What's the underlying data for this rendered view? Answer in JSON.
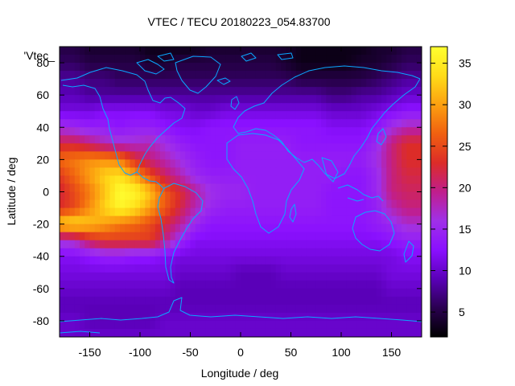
{
  "chart_data": {
    "type": "heatmap",
    "title": "VTEC / TECU 20180223_054.83700",
    "xlabel": "Longitude / deg",
    "ylabel": "Latitude / deg",
    "legend_entry": "'Vtec_",
    "xlim": [
      -180,
      180
    ],
    "ylim": [
      -90,
      90
    ],
    "x_ticks": [
      -150,
      -100,
      -50,
      0,
      50,
      100,
      150
    ],
    "y_ticks": [
      -80,
      -60,
      -40,
      -20,
      0,
      20,
      40,
      60,
      80
    ],
    "colorbar": {
      "range": [
        2,
        37
      ],
      "ticks": [
        5,
        10,
        15,
        20,
        25,
        30,
        35
      ],
      "palette": [
        "#000000",
        "#2a0050",
        "#5a00b8",
        "#8a10ff",
        "#a030e8",
        "#c01e8c",
        "#dc2c28",
        "#f06010",
        "#fca010",
        "#ffdc18",
        "#ffff30"
      ]
    },
    "grid_columns_lon": [
      -180,
      -165,
      -150,
      -135,
      -120,
      -105,
      -90,
      -75,
      -60,
      -45,
      -30,
      -15,
      0,
      15,
      30,
      45,
      60,
      75,
      90,
      105,
      120,
      135,
      150,
      165,
      180
    ],
    "grid_rows_lat": [
      90,
      80,
      70,
      60,
      50,
      40,
      30,
      20,
      10,
      0,
      -10,
      -20,
      -30,
      -40,
      -50,
      -60,
      -70,
      -80,
      -90
    ],
    "values": [
      [
        5,
        5,
        4,
        4,
        4,
        4,
        3,
        3,
        3,
        3,
        4,
        4,
        4,
        4,
        4,
        4,
        3,
        3,
        3,
        3,
        3,
        4,
        4,
        5,
        5
      ],
      [
        6,
        6,
        5,
        5,
        5,
        5,
        4,
        4,
        5,
        5,
        5,
        5,
        5,
        5,
        5,
        4,
        3,
        3,
        3,
        3,
        4,
        4,
        5,
        6,
        6
      ],
      [
        8,
        8,
        7,
        7,
        6,
        6,
        6,
        6,
        6,
        6,
        6,
        6,
        6,
        6,
        6,
        6,
        5,
        5,
        5,
        5,
        5,
        6,
        7,
        8,
        8
      ],
      [
        9,
        9,
        8,
        8,
        8,
        8,
        8,
        8,
        8,
        8,
        8,
        8,
        8,
        8,
        8,
        8,
        8,
        8,
        7,
        7,
        8,
        8,
        9,
        10,
        10
      ],
      [
        11,
        11,
        11,
        12,
        12,
        12,
        12,
        11,
        11,
        10,
        10,
        11,
        11,
        11,
        11,
        11,
        11,
        11,
        10,
        10,
        10,
        11,
        12,
        13,
        13
      ],
      [
        16,
        15,
        14,
        14,
        13,
        14,
        14,
        13,
        12,
        12,
        13,
        13,
        13,
        13,
        13,
        13,
        13,
        13,
        12,
        12,
        12,
        13,
        16,
        18,
        18
      ],
      [
        22,
        22,
        20,
        18,
        17,
        17,
        18,
        16,
        14,
        13,
        13,
        13,
        14,
        14,
        14,
        14,
        13,
        13,
        13,
        13,
        13,
        15,
        20,
        23,
        23
      ],
      [
        27,
        28,
        29,
        29,
        28,
        23,
        20,
        18,
        16,
        14,
        13,
        13,
        14,
        14,
        14,
        14,
        14,
        14,
        14,
        14,
        14,
        16,
        20,
        23,
        23
      ],
      [
        24,
        27,
        30,
        33,
        34,
        30,
        25,
        21,
        18,
        15,
        14,
        14,
        14,
        14,
        14,
        14,
        14,
        14,
        14,
        13,
        13,
        15,
        20,
        22,
        22
      ],
      [
        22,
        25,
        28,
        32,
        37,
        36,
        32,
        26,
        23,
        19,
        16,
        15,
        15,
        14,
        14,
        14,
        14,
        14,
        13,
        13,
        13,
        15,
        20,
        21,
        21
      ],
      [
        23,
        25,
        29,
        33,
        36,
        34,
        30,
        26,
        22,
        18,
        15,
        14,
        14,
        14,
        14,
        14,
        14,
        14,
        13,
        13,
        13,
        14,
        18,
        20,
        20
      ],
      [
        33,
        34,
        32,
        30,
        28,
        27,
        25,
        22,
        19,
        15,
        13,
        13,
        13,
        13,
        13,
        13,
        13,
        13,
        13,
        13,
        13,
        14,
        15,
        17,
        17
      ],
      [
        17,
        18,
        22,
        24,
        24,
        24,
        24,
        20,
        15,
        12,
        12,
        12,
        12,
        12,
        12,
        12,
        12,
        12,
        12,
        12,
        12,
        12,
        13,
        14,
        14
      ],
      [
        12,
        12,
        13,
        14,
        14,
        13,
        13,
        12,
        11,
        11,
        11,
        11,
        11,
        11,
        11,
        11,
        11,
        11,
        11,
        11,
        11,
        11,
        11,
        12,
        12
      ],
      [
        11,
        11,
        11,
        11,
        11,
        11,
        11,
        11,
        10,
        10,
        10,
        10,
        9,
        9,
        9,
        10,
        10,
        10,
        10,
        10,
        10,
        10,
        11,
        11,
        11
      ],
      [
        10,
        10,
        10,
        10,
        10,
        10,
        10,
        10,
        9,
        9,
        9,
        9,
        9,
        9,
        9,
        9,
        9,
        9,
        9,
        9,
        9,
        9,
        10,
        10,
        10
      ],
      [
        9,
        9,
        9,
        9,
        9,
        9,
        9,
        9,
        9,
        9,
        9,
        9,
        9,
        9,
        9,
        9,
        9,
        9,
        9,
        9,
        9,
        9,
        9,
        9,
        9
      ],
      [
        10,
        10,
        9,
        9,
        9,
        9,
        9,
        10,
        10,
        10,
        10,
        10,
        10,
        10,
        10,
        10,
        10,
        10,
        10,
        10,
        10,
        10,
        10,
        10,
        10
      ],
      [
        10,
        10,
        10,
        10,
        10,
        10,
        10,
        10,
        10,
        10,
        10,
        10,
        10,
        10,
        10,
        10,
        10,
        10,
        10,
        10,
        10,
        10,
        10,
        10,
        10
      ]
    ]
  },
  "colors": {
    "coastline": "#0aa8ff",
    "axis": "#000000",
    "background": "#ffffff"
  }
}
